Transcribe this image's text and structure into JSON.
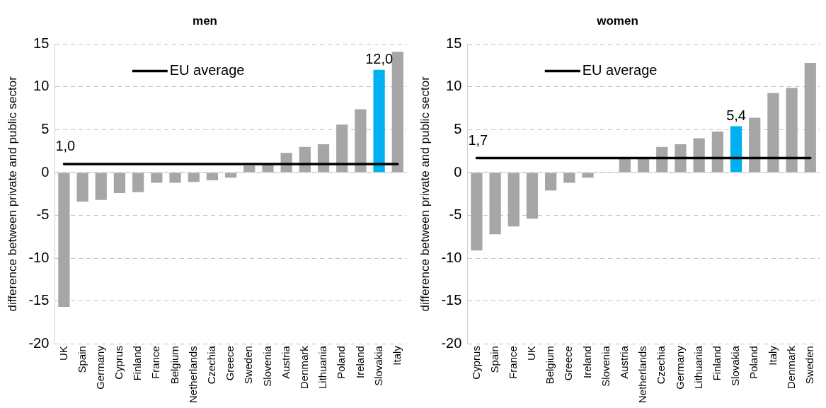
{
  "chart_data": [
    {
      "type": "bar",
      "title": "men",
      "ylabel": "difference between private and public sector",
      "categories": [
        "UK",
        "Spain",
        "Germany",
        "Cyprus",
        "Finland",
        "France",
        "Belgium",
        "Netherlands",
        "Czechia",
        "Greece",
        "Sweden",
        "Slovenia",
        "Austria",
        "Denmark",
        "Lithuania",
        "Poland",
        "Ireland",
        "Slovakia",
        "Italy"
      ],
      "series": [
        {
          "colors": [
            "#a6a6a6",
            "#a6a6a6",
            "#a6a6a6",
            "#a6a6a6",
            "#a6a6a6",
            "#a6a6a6",
            "#a6a6a6",
            "#a6a6a6",
            "#a6a6a6",
            "#a6a6a6",
            "#a6a6a6",
            "#a6a6a6",
            "#a6a6a6",
            "#a6a6a6",
            "#a6a6a6",
            "#a6a6a6",
            "#a6a6a6",
            "#00b0f0",
            "#a6a6a6"
          ],
          "values": [
            -15.7,
            -3.4,
            -3.2,
            -2.4,
            -2.3,
            -1.2,
            -1.2,
            -1.1,
            -0.9,
            -0.6,
            0.8,
            1.0,
            2.3,
            3.0,
            3.3,
            5.6,
            7.4,
            12.0,
            14.1
          ],
          "value_labels": [
            null,
            null,
            null,
            null,
            null,
            null,
            null,
            null,
            null,
            null,
            null,
            null,
            null,
            null,
            null,
            null,
            null,
            "12,0",
            null
          ]
        },
        {
          "type": "line",
          "name": "EU average",
          "color": "#000000",
          "values": [
            1.0,
            1.0,
            1.0,
            1.0,
            1.0,
            1.0,
            1.0,
            1.0,
            1.0,
            1.0,
            1.0,
            1.0,
            1.0,
            1.0,
            1.0,
            1.0,
            1.0,
            1.0,
            1.0
          ]
        }
      ],
      "ylim": [
        -20,
        15
      ],
      "yticks": [
        -20,
        -15,
        -10,
        -5,
        0,
        5,
        10,
        15
      ],
      "grid": "y",
      "legend": "top left",
      "marker": "none",
      "annotations": [
        {
          "text": "1,0",
          "x": "UK",
          "y": 1.0
        }
      ]
    },
    {
      "type": "bar",
      "title": "women",
      "ylabel": "difference between private and public sector",
      "categories": [
        "Cyprus",
        "Spain",
        "France",
        "UK",
        "Belgium",
        "Greece",
        "Ireland",
        "Slovenia",
        "Austria",
        "Netherlands",
        "Czechia",
        "Germany",
        "Lithuania",
        "Finland",
        "Slovakia",
        "Poland",
        "Italy",
        "Denmark",
        "Sweden"
      ],
      "series": [
        {
          "colors": [
            "#a6a6a6",
            "#a6a6a6",
            "#a6a6a6",
            "#a6a6a6",
            "#a6a6a6",
            "#a6a6a6",
            "#a6a6a6",
            "#a6a6a6",
            "#a6a6a6",
            "#a6a6a6",
            "#a6a6a6",
            "#a6a6a6",
            "#a6a6a6",
            "#a6a6a6",
            "#00b0f0",
            "#a6a6a6",
            "#a6a6a6",
            "#a6a6a6",
            "#a6a6a6"
          ],
          "values": [
            -9.1,
            -7.2,
            -6.3,
            -5.4,
            -2.1,
            -1.2,
            -0.6,
            0,
            1.6,
            1.8,
            3.0,
            3.3,
            4.0,
            4.8,
            5.4,
            6.4,
            9.3,
            9.9,
            12.8
          ],
          "value_labels": [
            null,
            null,
            null,
            null,
            null,
            null,
            null,
            null,
            null,
            null,
            null,
            null,
            null,
            null,
            "5,4",
            null,
            null,
            null,
            null
          ]
        },
        {
          "type": "line",
          "name": "EU average",
          "color": "#000000",
          "values": [
            1.7,
            1.7,
            1.7,
            1.7,
            1.7,
            1.7,
            1.7,
            1.7,
            1.7,
            1.7,
            1.7,
            1.7,
            1.7,
            1.7,
            1.7,
            1.7,
            1.7,
            1.7,
            1.7
          ]
        }
      ],
      "ylim": [
        -20,
        15
      ],
      "yticks": [
        -20,
        -15,
        -10,
        -5,
        0,
        5,
        10,
        15
      ],
      "grid": "y",
      "legend": "top left",
      "marker": "none",
      "annotations": [
        {
          "text": "1,7",
          "x": "Cyprus",
          "y": 1.7
        }
      ]
    }
  ]
}
